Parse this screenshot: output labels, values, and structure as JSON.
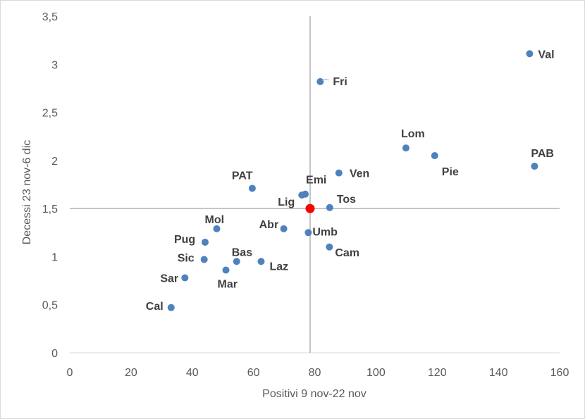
{
  "chart_data": {
    "type": "scatter",
    "title": "",
    "xlabel": "Positivi 9 nov-22 nov",
    "ylabel": "Decessi 23 nov-6 dic",
    "xlim": [
      0,
      160
    ],
    "ylim": [
      0,
      3.5
    ],
    "x_ticks": [
      "0",
      "20",
      "40",
      "60",
      "80",
      "100",
      "120",
      "140",
      "160"
    ],
    "y_ticks": [
      "0",
      "0,5",
      "1",
      "1,5",
      "2",
      "2,5",
      "3",
      "3,5"
    ],
    "grid": false,
    "reference_lines": {
      "x": 78.5,
      "y": 1.5
    },
    "colors": {
      "points": "#4f81bd",
      "highlight": "#ff0000",
      "reference": "#a6a6a6",
      "axis": "#d9d9d9"
    },
    "points": [
      {
        "label": "Val",
        "x": 150.2,
        "y": 3.11
      },
      {
        "label": "Fri",
        "x": 81.8,
        "y": 2.82
      },
      {
        "label": "Lom",
        "x": 109.8,
        "y": 2.13
      },
      {
        "label": "Pie",
        "x": 119.2,
        "y": 2.05
      },
      {
        "label": "PAB",
        "x": 151.8,
        "y": 1.94
      },
      {
        "label": "Ven",
        "x": 87.9,
        "y": 1.87
      },
      {
        "label": "PAT",
        "x": 59.6,
        "y": 1.71
      },
      {
        "label": "Emi",
        "x": 76.9,
        "y": 1.65
      },
      {
        "label": "Lig",
        "x": 75.8,
        "y": 1.64
      },
      {
        "label": "Tos",
        "x": 84.9,
        "y": 1.51
      },
      {
        "label": "Abr",
        "x": 69.9,
        "y": 1.29
      },
      {
        "label": "Mol",
        "x": 48.0,
        "y": 1.29
      },
      {
        "label": "Umb",
        "x": 77.9,
        "y": 1.25
      },
      {
        "label": "Pug",
        "x": 44.2,
        "y": 1.15
      },
      {
        "label": "Cam",
        "x": 84.8,
        "y": 1.1
      },
      {
        "label": "Sic",
        "x": 43.9,
        "y": 0.97
      },
      {
        "label": "Bas",
        "x": 54.5,
        "y": 0.95
      },
      {
        "label": "Laz",
        "x": 62.5,
        "y": 0.95
      },
      {
        "label": "Mar",
        "x": 51.0,
        "y": 0.86
      },
      {
        "label": "Sar",
        "x": 37.6,
        "y": 0.78
      },
      {
        "label": "Cal",
        "x": 33.1,
        "y": 0.47
      }
    ],
    "highlight_point": {
      "x": 78.5,
      "y": 1.5
    }
  }
}
